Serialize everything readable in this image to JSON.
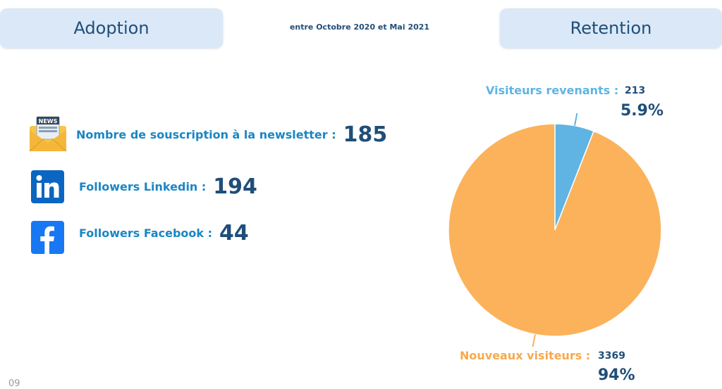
{
  "header": {
    "adoption_title": "Adoption",
    "retention_title": "Retention",
    "period": "entre Octobre 2020 et Mai 2021"
  },
  "adoption": {
    "newsletter": {
      "label": "Nombre de souscription à la newsletter :",
      "value": "185",
      "icon_text": "NEWS"
    },
    "linkedin": {
      "label": "Followers Linkedin :",
      "value": "194"
    },
    "facebook": {
      "label": "Followers Facebook :",
      "value": "44"
    }
  },
  "chart_data": {
    "type": "pie",
    "title": "Retention",
    "slices": [
      {
        "name": "Visiteurs revenants",
        "label": "Visiteurs revenants :",
        "value": 213,
        "display_value": "213",
        "percent": "5.9%",
        "color": "#5fb4e3"
      },
      {
        "name": "Nouveaux visiteurs",
        "label": "Nouveaux visiteurs :",
        "value": 3369,
        "display_value": "3369",
        "percent": "94%",
        "color": "#fbb25b"
      }
    ]
  },
  "footer": {
    "page_number": "09"
  }
}
